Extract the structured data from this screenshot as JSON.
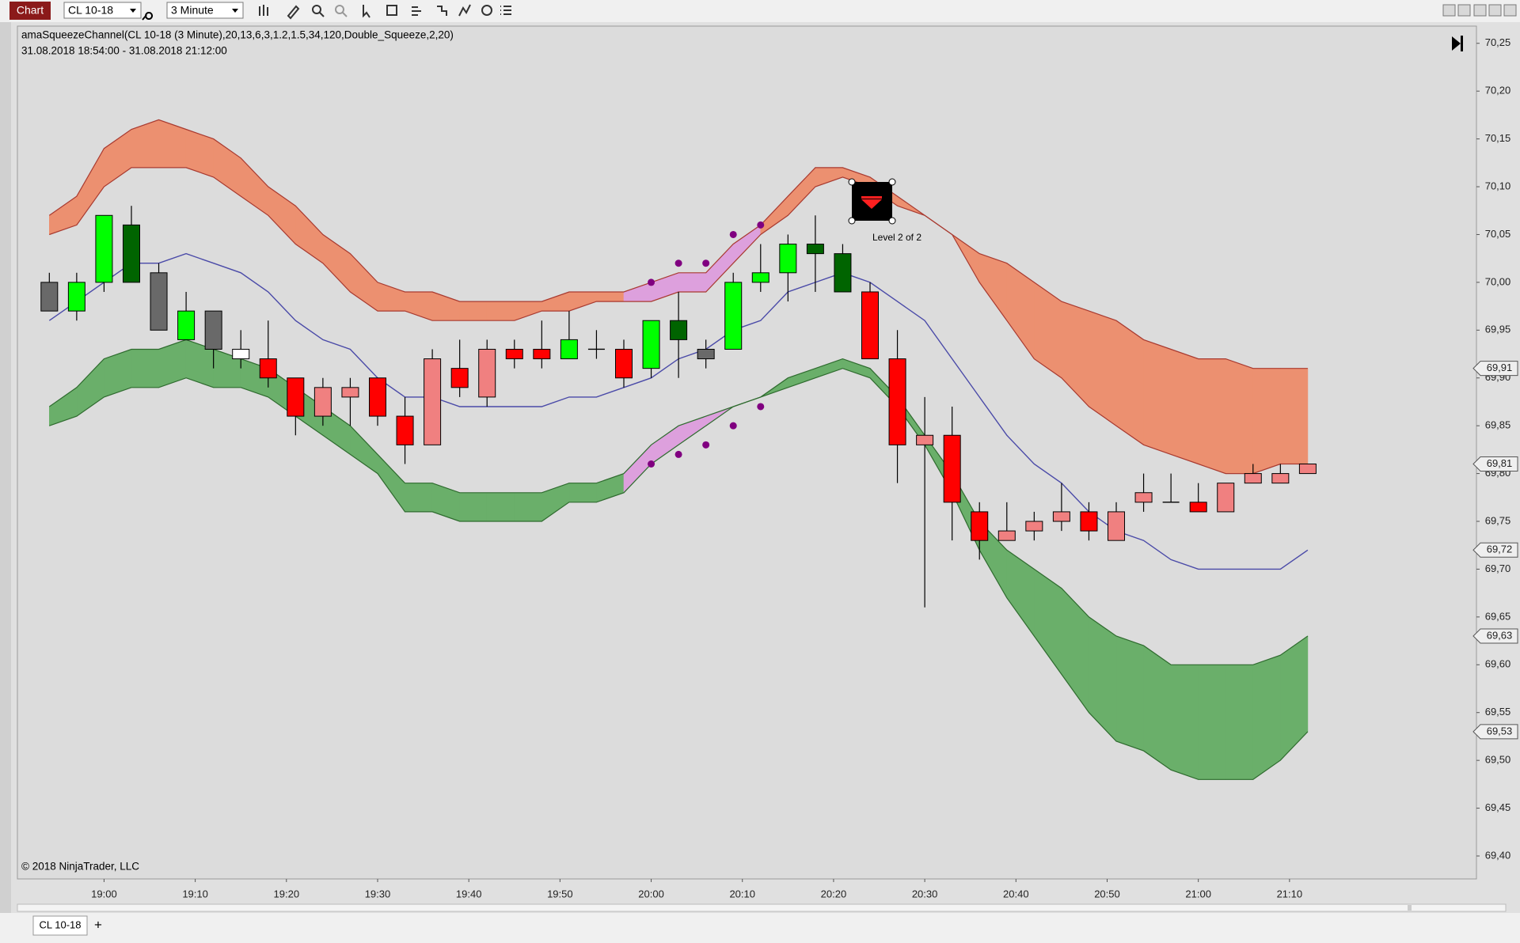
{
  "ui": {
    "chart_button": "Chart",
    "instrument": "CL 10-18",
    "interval": "3 Minute",
    "tab": "CL 10-18",
    "add_tab": "+"
  },
  "chart_data": {
    "type": "candlestick",
    "title": "amaSqueezeChannel(CL 10-18 (3 Minute),20,13,6,3,1.2,1.5,34,120,Double_Squeeze,2,20)",
    "subtitle": "31.08.2018 18:54:00 - 31.08.2018 21:12:00",
    "copyright": "© 2018 NinjaTrader, LLC",
    "annotation": "Level 2 of 2",
    "x": [
      "18:54",
      "18:57",
      "19:00",
      "19:03",
      "19:06",
      "19:09",
      "19:12",
      "19:15",
      "19:18",
      "19:21",
      "19:24",
      "19:27",
      "19:30",
      "19:33",
      "19:36",
      "19:39",
      "19:42",
      "19:45",
      "19:48",
      "19:51",
      "19:54",
      "19:57",
      "20:00",
      "20:03",
      "20:06",
      "20:09",
      "20:12",
      "20:15",
      "20:18",
      "20:21",
      "20:24",
      "20:27",
      "20:30",
      "20:33",
      "20:36",
      "20:39",
      "20:42",
      "20:45",
      "20:48",
      "20:51",
      "20:54",
      "20:57",
      "21:00",
      "21:03",
      "21:06",
      "21:09",
      "21:12"
    ],
    "open": [
      70.0,
      69.97,
      70.0,
      70.0,
      70.01,
      69.94,
      69.97,
      69.92,
      69.92,
      69.9,
      69.86,
      69.88,
      69.9,
      69.86,
      69.83,
      69.91,
      69.88,
      69.93,
      69.93,
      69.92,
      69.93,
      69.93,
      69.91,
      69.94,
      69.93,
      69.93,
      70.0,
      70.01,
      70.03,
      69.99,
      69.99,
      69.92,
      69.83,
      69.84,
      69.76,
      69.73,
      69.74,
      69.75,
      69.76,
      69.73,
      69.77,
      69.77,
      69.77,
      69.76,
      69.79,
      69.79,
      69.8
    ],
    "high": [
      70.01,
      70.01,
      70.07,
      70.08,
      70.02,
      69.99,
      69.97,
      69.95,
      69.96,
      69.9,
      69.9,
      69.9,
      69.9,
      69.88,
      69.93,
      69.94,
      69.94,
      69.94,
      69.96,
      69.97,
      69.95,
      69.94,
      69.96,
      69.99,
      69.94,
      70.01,
      70.04,
      70.05,
      70.07,
      70.04,
      70.0,
      69.95,
      69.88,
      69.87,
      69.77,
      69.77,
      69.76,
      69.79,
      69.77,
      69.77,
      69.8,
      69.8,
      69.79,
      69.79,
      69.81,
      69.81,
      69.81
    ],
    "low": [
      69.97,
      69.96,
      69.99,
      70.0,
      69.95,
      69.94,
      69.91,
      69.91,
      69.89,
      69.84,
      69.85,
      69.85,
      69.85,
      69.81,
      69.83,
      69.88,
      69.87,
      69.91,
      69.91,
      69.92,
      69.92,
      69.89,
      69.9,
      69.9,
      69.91,
      69.93,
      69.99,
      69.98,
      69.99,
      69.99,
      69.92,
      69.79,
      69.66,
      69.73,
      69.71,
      69.73,
      69.73,
      69.74,
      69.73,
      69.73,
      69.76,
      69.77,
      69.76,
      69.76,
      69.79,
      69.79,
      69.8
    ],
    "close": [
      69.97,
      70.0,
      70.07,
      70.06,
      69.95,
      69.97,
      69.93,
      69.93,
      69.9,
      69.86,
      69.89,
      69.89,
      69.86,
      69.83,
      69.92,
      69.89,
      69.93,
      69.92,
      69.92,
      69.94,
      69.93,
      69.9,
      69.96,
      69.96,
      69.92,
      70.0,
      70.01,
      70.04,
      70.04,
      70.03,
      69.92,
      69.83,
      69.84,
      69.77,
      69.73,
      69.74,
      69.75,
      69.76,
      69.74,
      69.76,
      69.78,
      69.77,
      69.76,
      69.79,
      69.8,
      69.8,
      69.81
    ],
    "colors": [
      "#696969",
      "#00ff00",
      "#00ff00",
      "#006400",
      "#696969",
      "#00ff00",
      "#696969",
      "#ffffff",
      "#ff0000",
      "#ff0000",
      "#f08080",
      "#f08080",
      "#ff0000",
      "#ff0000",
      "#f08080",
      "#ff0000",
      "#f08080",
      "#ff0000",
      "#ff0000",
      "#00ff00",
      "#000000",
      "#ff0000",
      "#00ff00",
      "#006400",
      "#696969",
      "#00ff00",
      "#00ff00",
      "#00ff00",
      "#006400",
      "#006400",
      "#ff0000",
      "#ff0000",
      "#f08080",
      "#ff0000",
      "#ff0000",
      "#f08080",
      "#f08080",
      "#f08080",
      "#ff0000",
      "#f08080",
      "#f08080",
      "#000000",
      "#ff0000",
      "#f08080",
      "#f08080",
      "#f08080",
      "#f08080"
    ],
    "upper_band": {
      "outer": [
        70.07,
        70.09,
        70.14,
        70.16,
        70.17,
        70.16,
        70.15,
        70.13,
        70.1,
        70.08,
        70.05,
        70.03,
        70.0,
        69.99,
        69.99,
        69.98,
        69.98,
        69.98,
        69.98,
        69.99,
        69.99,
        69.99,
        70.0,
        70.01,
        70.01,
        70.04,
        70.06,
        70.09,
        70.12,
        70.12,
        70.11,
        70.09,
        70.07,
        70.05,
        70.03,
        70.02,
        70.0,
        69.98,
        69.97,
        69.96,
        69.94,
        69.93,
        69.92,
        69.92,
        69.91,
        69.91,
        69.91
      ],
      "inner": [
        70.05,
        70.06,
        70.1,
        70.12,
        70.12,
        70.12,
        70.11,
        70.09,
        70.07,
        70.04,
        70.02,
        69.99,
        69.97,
        69.97,
        69.96,
        69.96,
        69.96,
        69.96,
        69.97,
        69.97,
        69.98,
        69.98,
        69.98,
        69.99,
        69.99,
        70.02,
        70.05,
        70.07,
        70.1,
        70.11,
        70.1,
        70.08,
        70.07,
        70.05,
        70.0,
        69.96,
        69.92,
        69.9,
        69.87,
        69.85,
        69.83,
        69.82,
        69.81,
        69.8,
        69.8,
        69.81,
        69.81
      ],
      "fill_colors": [
        "#ec9070",
        "#ec9070",
        "#ec9070",
        "#ec9070",
        "#ec9070",
        "#ec9070",
        "#ec9070",
        "#ec9070",
        "#ec9070",
        "#ec9070",
        "#ec9070",
        "#ec9070",
        "#ec9070",
        "#ec9070",
        "#ec9070",
        "#ec9070",
        "#ec9070",
        "#ec9070",
        "#ec9070",
        "#ec9070",
        "#ec9070",
        "#ec9070",
        "#dda0dd",
        "#dda0dd",
        "#dda0dd",
        "#dda0dd",
        "#dda0dd",
        "#ec9070",
        "#ec9070",
        "#ec9070",
        "#ec9070",
        "#ec9070",
        "#ec9070",
        "#ec9070",
        "#ec9070",
        "#ec9070",
        "#ec9070",
        "#ec9070",
        "#ec9070",
        "#ec9070",
        "#ec9070",
        "#ec9070",
        "#ec9070",
        "#ec9070",
        "#ec9070",
        "#ec9070",
        "#ec9070"
      ],
      "line_color": "#a83a30"
    },
    "lower_band": {
      "outer": [
        69.85,
        69.86,
        69.88,
        69.89,
        69.89,
        69.9,
        69.89,
        69.89,
        69.88,
        69.86,
        69.84,
        69.82,
        69.8,
        69.76,
        69.76,
        69.75,
        69.75,
        69.75,
        69.75,
        69.77,
        69.77,
        69.78,
        69.81,
        69.83,
        69.85,
        69.87,
        69.88,
        69.89,
        69.9,
        69.91,
        69.9,
        69.87,
        69.83,
        69.78,
        69.72,
        69.67,
        69.63,
        69.59,
        69.55,
        69.52,
        69.51,
        69.49,
        69.48,
        69.48,
        69.48,
        69.5,
        69.53
      ],
      "inner": [
        69.87,
        69.89,
        69.92,
        69.93,
        69.93,
        69.94,
        69.93,
        69.92,
        69.91,
        69.89,
        69.87,
        69.85,
        69.82,
        69.79,
        69.79,
        69.78,
        69.78,
        69.78,
        69.78,
        69.79,
        69.79,
        69.8,
        69.83,
        69.85,
        69.86,
        69.87,
        69.88,
        69.9,
        69.91,
        69.92,
        69.91,
        69.88,
        69.84,
        69.8,
        69.75,
        69.72,
        69.7,
        69.68,
        69.65,
        69.63,
        69.62,
        69.6,
        69.6,
        69.6,
        69.6,
        69.61,
        69.63
      ],
      "fill_colors": [
        "#6aaf6a",
        "#6aaf6a",
        "#6aaf6a",
        "#6aaf6a",
        "#6aaf6a",
        "#6aaf6a",
        "#6aaf6a",
        "#6aaf6a",
        "#6aaf6a",
        "#6aaf6a",
        "#6aaf6a",
        "#6aaf6a",
        "#6aaf6a",
        "#6aaf6a",
        "#6aaf6a",
        "#6aaf6a",
        "#6aaf6a",
        "#6aaf6a",
        "#6aaf6a",
        "#6aaf6a",
        "#6aaf6a",
        "#6aaf6a",
        "#dda0dd",
        "#dda0dd",
        "#dda0dd",
        "#dda0dd",
        "#dda0dd",
        "#6aaf6a",
        "#6aaf6a",
        "#6aaf6a",
        "#6aaf6a",
        "#6aaf6a",
        "#6aaf6a",
        "#6aaf6a",
        "#6aaf6a",
        "#6aaf6a",
        "#6aaf6a",
        "#6aaf6a",
        "#6aaf6a",
        "#6aaf6a",
        "#6aaf6a",
        "#6aaf6a",
        "#6aaf6a",
        "#6aaf6a",
        "#6aaf6a",
        "#6aaf6a",
        "#6aaf6a"
      ],
      "line_color": "#2f6b2f"
    },
    "midline": {
      "values": [
        69.96,
        69.98,
        70.0,
        70.02,
        70.02,
        70.03,
        70.02,
        70.01,
        69.99,
        69.96,
        69.94,
        69.93,
        69.9,
        69.88,
        69.88,
        69.87,
        69.87,
        69.87,
        69.87,
        69.88,
        69.88,
        69.89,
        69.9,
        69.92,
        69.93,
        69.95,
        69.96,
        69.99,
        70.0,
        70.01,
        70.0,
        69.98,
        69.96,
        69.92,
        69.88,
        69.84,
        69.81,
        69.79,
        69.76,
        69.74,
        69.73,
        69.71,
        69.7,
        69.7,
        69.7,
        69.7,
        69.72
      ],
      "color": "#4a4aa8"
    },
    "squeeze_dots": [
      {
        "x": [
          "20:00",
          "20:03",
          "20:06",
          "20:09",
          "20:12"
        ],
        "values": [
          70.0,
          70.02,
          70.02,
          70.05,
          70.06
        ],
        "color": "#800080"
      },
      {
        "x": [
          "20:00",
          "20:03",
          "20:06",
          "20:09",
          "20:12"
        ],
        "values": [
          69.81,
          69.82,
          69.83,
          69.85,
          69.87
        ],
        "color": "#800080"
      }
    ],
    "price_markers": [
      {
        "value": 69.91,
        "label": "69,91"
      },
      {
        "value": 69.81,
        "label": "69,81"
      },
      {
        "value": 69.72,
        "label": "69,72"
      },
      {
        "value": 69.63,
        "label": "69,63"
      },
      {
        "value": 69.53,
        "label": "69,53"
      }
    ],
    "xlim": [
      "18:50:30",
      "21:30:30"
    ],
    "xticks": [
      "19:00",
      "19:10",
      "19:20",
      "19:30",
      "19:40",
      "19:50",
      "20:00",
      "20:10",
      "20:20",
      "20:30",
      "20:40",
      "20:50",
      "21:00",
      "21:10"
    ],
    "ylim": [
      69.376,
      70.268
    ],
    "yticks": [
      {
        "value": 69.4,
        "label": "69,40"
      },
      {
        "value": 69.45,
        "label": "69,45"
      },
      {
        "value": 69.5,
        "label": "69,50"
      },
      {
        "value": 69.55,
        "label": "69,55"
      },
      {
        "value": 69.6,
        "label": "69,60"
      },
      {
        "value": 69.65,
        "label": "69,65"
      },
      {
        "value": 69.7,
        "label": "69,70"
      },
      {
        "value": 69.75,
        "label": "69,75"
      },
      {
        "value": 69.8,
        "label": "69,80"
      },
      {
        "value": 69.85,
        "label": "69,85"
      },
      {
        "value": 69.9,
        "label": "69,90"
      },
      {
        "value": 69.95,
        "label": "69,95"
      },
      {
        "value": 70.0,
        "label": "70,00"
      },
      {
        "value": 70.05,
        "label": "70,05"
      },
      {
        "value": 70.1,
        "label": "70,10"
      },
      {
        "value": 70.15,
        "label": "70,15"
      },
      {
        "value": 70.2,
        "label": "70,20"
      },
      {
        "value": 70.25,
        "label": "70,25"
      }
    ],
    "grid": false
  }
}
